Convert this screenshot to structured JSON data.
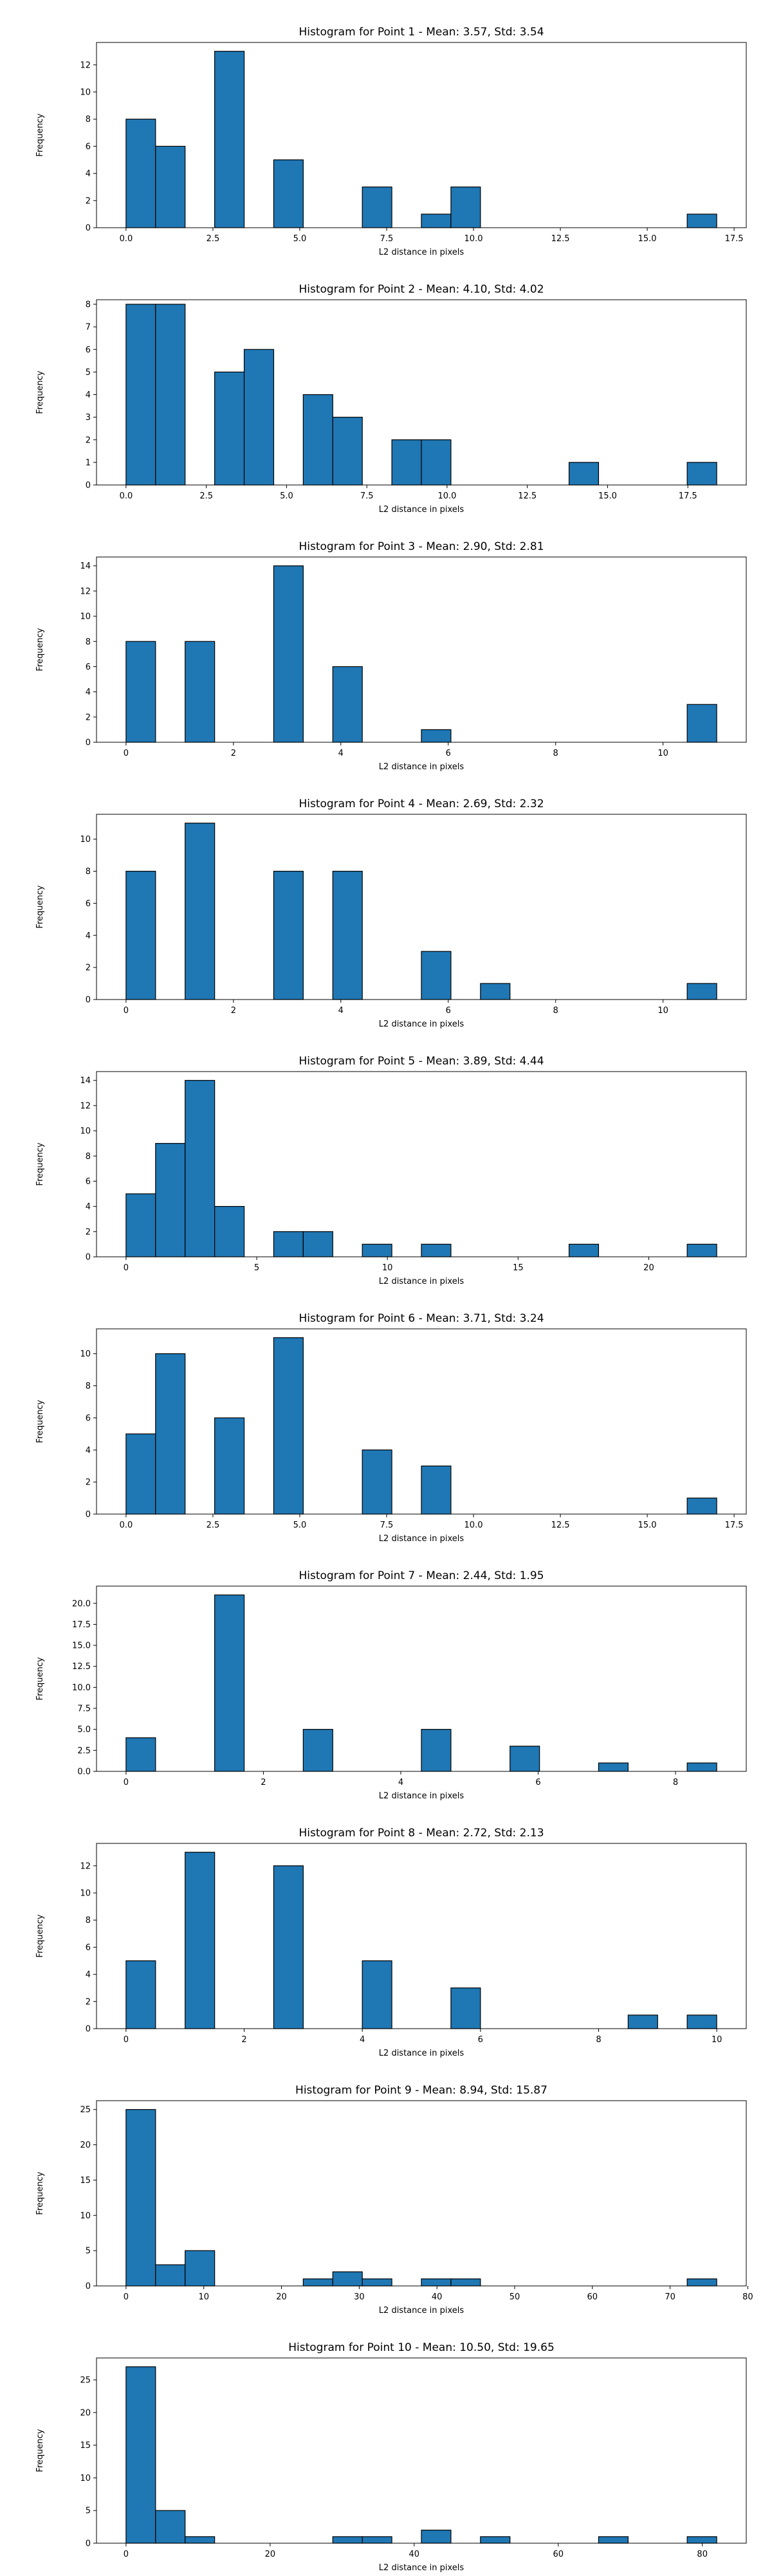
{
  "chart_data": [
    {
      "type": "bar",
      "title": "Histogram for Point 1 - Mean: 3.57, Std: 3.54",
      "xlabel": "L2 distance in pixels",
      "ylabel": "Frequency",
      "xlim": [
        -0.85,
        17.85
      ],
      "ylim": [
        0,
        13.65
      ],
      "xticks": [
        0.0,
        2.5,
        5.0,
        7.5,
        10.0,
        12.5,
        15.0,
        17.5
      ],
      "xtick_labels": [
        "0.0",
        "2.5",
        "5.0",
        "7.5",
        "10.0",
        "12.5",
        "15.0",
        "17.5"
      ],
      "yticks": [
        0,
        2,
        4,
        6,
        8,
        10,
        12
      ],
      "ytick_labels": [
        "0",
        "2",
        "4",
        "6",
        "8",
        "10",
        "12"
      ],
      "grid": false,
      "bar_color": "#1f77b4",
      "edge_color": "#000000",
      "bins": [
        {
          "x0": 0.0,
          "x1": 0.85,
          "count": 8
        },
        {
          "x0": 0.85,
          "x1": 1.7,
          "count": 6
        },
        {
          "x0": 2.55,
          "x1": 3.4,
          "count": 13
        },
        {
          "x0": 4.25,
          "x1": 5.1,
          "count": 5
        },
        {
          "x0": 6.8,
          "x1": 7.65,
          "count": 3
        },
        {
          "x0": 8.5,
          "x1": 9.35,
          "count": 1
        },
        {
          "x0": 9.35,
          "x1": 10.2,
          "count": 3
        },
        {
          "x0": 16.15,
          "x1": 17.0,
          "count": 1
        }
      ]
    },
    {
      "type": "bar",
      "title": "Histogram for Point 2 - Mean: 4.10, Std: 4.02",
      "xlabel": "L2 distance in pixels",
      "ylabel": "Frequency",
      "xlim": [
        -0.92,
        19.32
      ],
      "ylim": [
        0,
        8.2
      ],
      "xticks": [
        0.0,
        2.5,
        5.0,
        7.5,
        10.0,
        12.5,
        15.0,
        17.5
      ],
      "xtick_labels": [
        "0.0",
        "2.5",
        "5.0",
        "7.5",
        "10.0",
        "12.5",
        "15.0",
        "17.5"
      ],
      "yticks": [
        0,
        1,
        2,
        3,
        4,
        5,
        6,
        7,
        8
      ],
      "ytick_labels": [
        "0",
        "1",
        "2",
        "3",
        "4",
        "5",
        "6",
        "7",
        "8"
      ],
      "grid": false,
      "bar_color": "#1f77b4",
      "edge_color": "#000000",
      "bins": [
        {
          "x0": 0.0,
          "x1": 0.92,
          "count": 8
        },
        {
          "x0": 0.92,
          "x1": 1.84,
          "count": 8
        },
        {
          "x0": 2.76,
          "x1": 3.68,
          "count": 5
        },
        {
          "x0": 3.68,
          "x1": 4.6,
          "count": 6
        },
        {
          "x0": 5.52,
          "x1": 6.44,
          "count": 4
        },
        {
          "x0": 6.44,
          "x1": 7.36,
          "count": 3
        },
        {
          "x0": 8.28,
          "x1": 9.2,
          "count": 2
        },
        {
          "x0": 9.2,
          "x1": 10.12,
          "count": 2
        },
        {
          "x0": 13.8,
          "x1": 14.72,
          "count": 1
        },
        {
          "x0": 17.48,
          "x1": 18.4,
          "count": 1
        }
      ]
    },
    {
      "type": "bar",
      "title": "Histogram for Point 3 - Mean: 2.90, Std: 2.81",
      "xlabel": "L2 distance in pixels",
      "ylabel": "Frequency",
      "xlim": [
        -0.55,
        11.55
      ],
      "ylim": [
        0,
        14.7
      ],
      "xticks": [
        0,
        2,
        4,
        6,
        8,
        10
      ],
      "xtick_labels": [
        "0",
        "2",
        "4",
        "6",
        "8",
        "10"
      ],
      "yticks": [
        0,
        2,
        4,
        6,
        8,
        10,
        12,
        14
      ],
      "ytick_labels": [
        "0",
        "2",
        "4",
        "6",
        "8",
        "10",
        "12",
        "14"
      ],
      "grid": false,
      "bar_color": "#1f77b4",
      "edge_color": "#000000",
      "bins": [
        {
          "x0": 0.0,
          "x1": 0.55,
          "count": 8
        },
        {
          "x0": 1.1,
          "x1": 1.65,
          "count": 8
        },
        {
          "x0": 2.75,
          "x1": 3.3,
          "count": 14
        },
        {
          "x0": 3.85,
          "x1": 4.4,
          "count": 6
        },
        {
          "x0": 5.5,
          "x1": 6.05,
          "count": 1
        },
        {
          "x0": 10.45,
          "x1": 11.0,
          "count": 3
        }
      ]
    },
    {
      "type": "bar",
      "title": "Histogram for Point 4 - Mean: 2.69, Std: 2.32",
      "xlabel": "L2 distance in pixels",
      "ylabel": "Frequency",
      "xlim": [
        -0.55,
        11.55
      ],
      "ylim": [
        0,
        11.55
      ],
      "xticks": [
        0,
        2,
        4,
        6,
        8,
        10
      ],
      "xtick_labels": [
        "0",
        "2",
        "4",
        "6",
        "8",
        "10"
      ],
      "yticks": [
        0,
        2,
        4,
        6,
        8,
        10
      ],
      "ytick_labels": [
        "0",
        "2",
        "4",
        "6",
        "8",
        "10"
      ],
      "grid": false,
      "bar_color": "#1f77b4",
      "edge_color": "#000000",
      "bins": [
        {
          "x0": 0.0,
          "x1": 0.55,
          "count": 8
        },
        {
          "x0": 1.1,
          "x1": 1.65,
          "count": 11
        },
        {
          "x0": 2.75,
          "x1": 3.3,
          "count": 8
        },
        {
          "x0": 3.85,
          "x1": 4.4,
          "count": 8
        },
        {
          "x0": 5.5,
          "x1": 6.05,
          "count": 3
        },
        {
          "x0": 6.6,
          "x1": 7.15,
          "count": 1
        },
        {
          "x0": 10.45,
          "x1": 11.0,
          "count": 1
        }
      ]
    },
    {
      "type": "bar",
      "title": "Histogram for Point 5 - Mean: 3.89, Std: 4.44",
      "xlabel": "L2 distance in pixels",
      "ylabel": "Frequency",
      "xlim": [
        -1.13,
        23.73
      ],
      "ylim": [
        0,
        14.7
      ],
      "xticks": [
        0,
        5,
        10,
        15,
        20
      ],
      "xtick_labels": [
        "0",
        "5",
        "10",
        "15",
        "20"
      ],
      "yticks": [
        0,
        2,
        4,
        6,
        8,
        10,
        12,
        14
      ],
      "ytick_labels": [
        "0",
        "2",
        "4",
        "6",
        "8",
        "10",
        "12",
        "14"
      ],
      "grid": false,
      "bar_color": "#1f77b4",
      "edge_color": "#000000",
      "bins": [
        {
          "x0": 0.0,
          "x1": 1.13,
          "count": 5
        },
        {
          "x0": 1.13,
          "x1": 2.26,
          "count": 9
        },
        {
          "x0": 2.26,
          "x1": 3.39,
          "count": 14
        },
        {
          "x0": 3.39,
          "x1": 4.52,
          "count": 4
        },
        {
          "x0": 5.65,
          "x1": 6.78,
          "count": 2
        },
        {
          "x0": 6.78,
          "x1": 7.91,
          "count": 2
        },
        {
          "x0": 9.04,
          "x1": 10.17,
          "count": 1
        },
        {
          "x0": 11.3,
          "x1": 12.43,
          "count": 1
        },
        {
          "x0": 16.95,
          "x1": 18.08,
          "count": 1
        },
        {
          "x0": 21.47,
          "x1": 22.6,
          "count": 1
        }
      ]
    },
    {
      "type": "bar",
      "title": "Histogram for Point 6 - Mean: 3.71, Std: 3.24",
      "xlabel": "L2 distance in pixels",
      "ylabel": "Frequency",
      "xlim": [
        -0.85,
        17.85
      ],
      "ylim": [
        0,
        11.55
      ],
      "xticks": [
        0.0,
        2.5,
        5.0,
        7.5,
        10.0,
        12.5,
        15.0,
        17.5
      ],
      "xtick_labels": [
        "0.0",
        "2.5",
        "5.0",
        "7.5",
        "10.0",
        "12.5",
        "15.0",
        "17.5"
      ],
      "yticks": [
        0,
        2,
        4,
        6,
        8,
        10
      ],
      "ytick_labels": [
        "0",
        "2",
        "4",
        "6",
        "8",
        "10"
      ],
      "grid": false,
      "bar_color": "#1f77b4",
      "edge_color": "#000000",
      "bins": [
        {
          "x0": 0.0,
          "x1": 0.85,
          "count": 5
        },
        {
          "x0": 0.85,
          "x1": 1.7,
          "count": 10
        },
        {
          "x0": 2.55,
          "x1": 3.4,
          "count": 6
        },
        {
          "x0": 4.25,
          "x1": 5.1,
          "count": 11
        },
        {
          "x0": 6.8,
          "x1": 7.65,
          "count": 4
        },
        {
          "x0": 8.5,
          "x1": 9.35,
          "count": 3
        },
        {
          "x0": 16.15,
          "x1": 17.0,
          "count": 1
        }
      ]
    },
    {
      "type": "bar",
      "title": "Histogram for Point 7 - Mean: 2.44, Std: 1.95",
      "xlabel": "L2 distance in pixels",
      "ylabel": "Frequency",
      "xlim": [
        -0.43,
        9.03
      ],
      "ylim": [
        0,
        22.05
      ],
      "xticks": [
        0,
        2,
        4,
        6,
        8
      ],
      "xtick_labels": [
        "0",
        "2",
        "4",
        "6",
        "8"
      ],
      "yticks": [
        0.0,
        2.5,
        5.0,
        7.5,
        10.0,
        12.5,
        15.0,
        17.5,
        20.0
      ],
      "ytick_labels": [
        "0.0",
        "2.5",
        "5.0",
        "7.5",
        "10.0",
        "12.5",
        "15.0",
        "17.5",
        "20.0"
      ],
      "grid": false,
      "bar_color": "#1f77b4",
      "edge_color": "#000000",
      "bins": [
        {
          "x0": 0.0,
          "x1": 0.43,
          "count": 4
        },
        {
          "x0": 1.29,
          "x1": 1.72,
          "count": 21
        },
        {
          "x0": 2.58,
          "x1": 3.01,
          "count": 5
        },
        {
          "x0": 4.3,
          "x1": 4.73,
          "count": 5
        },
        {
          "x0": 5.59,
          "x1": 6.02,
          "count": 3
        },
        {
          "x0": 6.88,
          "x1": 7.31,
          "count": 1
        },
        {
          "x0": 8.17,
          "x1": 8.6,
          "count": 1
        }
      ]
    },
    {
      "type": "bar",
      "title": "Histogram for Point 8 - Mean: 2.72, Std: 2.13",
      "xlabel": "L2 distance in pixels",
      "ylabel": "Frequency",
      "xlim": [
        -0.5,
        10.5
      ],
      "ylim": [
        0,
        13.65
      ],
      "xticks": [
        0,
        2,
        4,
        6,
        8,
        10
      ],
      "xtick_labels": [
        "0",
        "2",
        "4",
        "6",
        "8",
        "10"
      ],
      "yticks": [
        0,
        2,
        4,
        6,
        8,
        10,
        12
      ],
      "ytick_labels": [
        "0",
        "2",
        "4",
        "6",
        "8",
        "10",
        "12"
      ],
      "grid": false,
      "bar_color": "#1f77b4",
      "edge_color": "#000000",
      "bins": [
        {
          "x0": 0.0,
          "x1": 0.5,
          "count": 5
        },
        {
          "x0": 1.0,
          "x1": 1.5,
          "count": 13
        },
        {
          "x0": 2.5,
          "x1": 3.0,
          "count": 12
        },
        {
          "x0": 4.0,
          "x1": 4.5,
          "count": 5
        },
        {
          "x0": 5.5,
          "x1": 6.0,
          "count": 3
        },
        {
          "x0": 8.5,
          "x1": 9.0,
          "count": 1
        },
        {
          "x0": 9.5,
          "x1": 10.0,
          "count": 1
        }
      ]
    },
    {
      "type": "bar",
      "title": "Histogram for Point 9 - Mean: 8.94, Std: 15.87",
      "xlabel": "L2 distance in pixels",
      "ylabel": "Frequency",
      "xlim": [
        -3.8,
        79.8
      ],
      "ylim": [
        0,
        26.25
      ],
      "xticks": [
        0,
        10,
        20,
        30,
        40,
        50,
        60,
        70,
        80
      ],
      "xtick_labels": [
        "0",
        "10",
        "20",
        "30",
        "40",
        "50",
        "60",
        "70",
        "80"
      ],
      "yticks": [
        0,
        5,
        10,
        15,
        20,
        25
      ],
      "ytick_labels": [
        "0",
        "5",
        "10",
        "15",
        "20",
        "25"
      ],
      "grid": false,
      "bar_color": "#1f77b4",
      "edge_color": "#000000",
      "bins": [
        {
          "x0": 0.0,
          "x1": 3.8,
          "count": 25
        },
        {
          "x0": 3.8,
          "x1": 7.6,
          "count": 3
        },
        {
          "x0": 7.6,
          "x1": 11.4,
          "count": 5
        },
        {
          "x0": 22.8,
          "x1": 26.6,
          "count": 1
        },
        {
          "x0": 26.6,
          "x1": 30.4,
          "count": 2
        },
        {
          "x0": 30.4,
          "x1": 34.2,
          "count": 1
        },
        {
          "x0": 38.0,
          "x1": 41.8,
          "count": 1
        },
        {
          "x0": 41.8,
          "x1": 45.6,
          "count": 1
        },
        {
          "x0": 72.2,
          "x1": 76.0,
          "count": 1
        }
      ]
    },
    {
      "type": "bar",
      "title": "Histogram for Point 10 - Mean: 10.50, Std: 19.65",
      "xlabel": "L2 distance in pixels",
      "ylabel": "Frequency",
      "xlim": [
        -4.1,
        86.1
      ],
      "ylim": [
        0,
        28.35
      ],
      "xticks": [
        0,
        20,
        40,
        60,
        80
      ],
      "xtick_labels": [
        "0",
        "20",
        "40",
        "60",
        "80"
      ],
      "yticks": [
        0,
        5,
        10,
        15,
        20,
        25
      ],
      "ytick_labels": [
        "0",
        "5",
        "10",
        "15",
        "20",
        "25"
      ],
      "grid": false,
      "bar_color": "#1f77b4",
      "edge_color": "#000000",
      "bins": [
        {
          "x0": 0.0,
          "x1": 4.1,
          "count": 27
        },
        {
          "x0": 4.1,
          "x1": 8.2,
          "count": 5
        },
        {
          "x0": 8.2,
          "x1": 12.3,
          "count": 1
        },
        {
          "x0": 28.7,
          "x1": 32.8,
          "count": 1
        },
        {
          "x0": 32.8,
          "x1": 36.9,
          "count": 1
        },
        {
          "x0": 41.0,
          "x1": 45.1,
          "count": 2
        },
        {
          "x0": 49.2,
          "x1": 53.3,
          "count": 1
        },
        {
          "x0": 65.6,
          "x1": 69.7,
          "count": 1
        },
        {
          "x0": 77.9,
          "x1": 82.0,
          "count": 1
        }
      ]
    }
  ]
}
